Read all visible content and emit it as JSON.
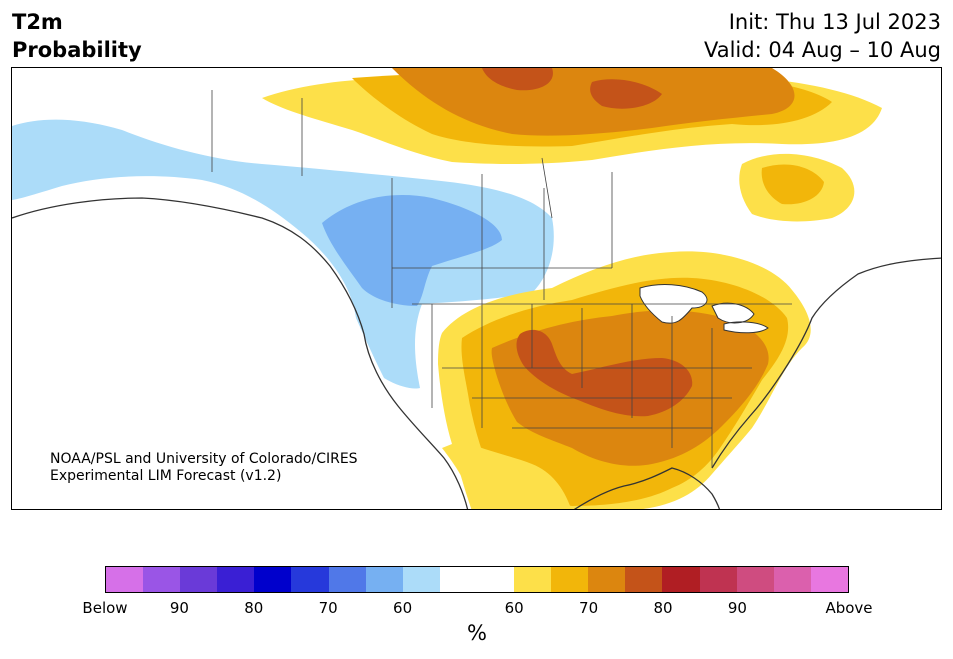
{
  "header": {
    "variable": "T2m",
    "product": "Probability",
    "init": "Init: Thu 13 Jul 2023",
    "valid": "Valid: 04 Aug – 10 Aug"
  },
  "map": {
    "credit_line1": "NOAA/PSL and University of Colorado/CIRES",
    "credit_line2": "Experimental LIM Forecast (v1.2)"
  },
  "colorbar": {
    "colors": [
      "#d670e8",
      "#9a55e6",
      "#6a3ad8",
      "#3a1fd4",
      "#0000cc",
      "#2639db",
      "#5078e8",
      "#76b0f2",
      "#acdcf9",
      "#ffffff",
      "#ffffff",
      "#fde049",
      "#f2b60a",
      "#dc860f",
      "#c45319",
      "#b01e23",
      "#bf3351",
      "#cf4c80",
      "#db60ad",
      "#e877e0"
    ],
    "tick_labels": [
      "Below",
      "90",
      "80",
      "70",
      "60",
      "60",
      "70",
      "80",
      "90",
      "Above"
    ],
    "unit": "%"
  },
  "legend_colors": {
    "blue_60": "#acdcf9",
    "blue_70": "#76b0f2",
    "orange_60": "#fde049",
    "orange_65": "#f2b60a",
    "orange_70": "#dc860f",
    "orange_75": "#c45319"
  }
}
